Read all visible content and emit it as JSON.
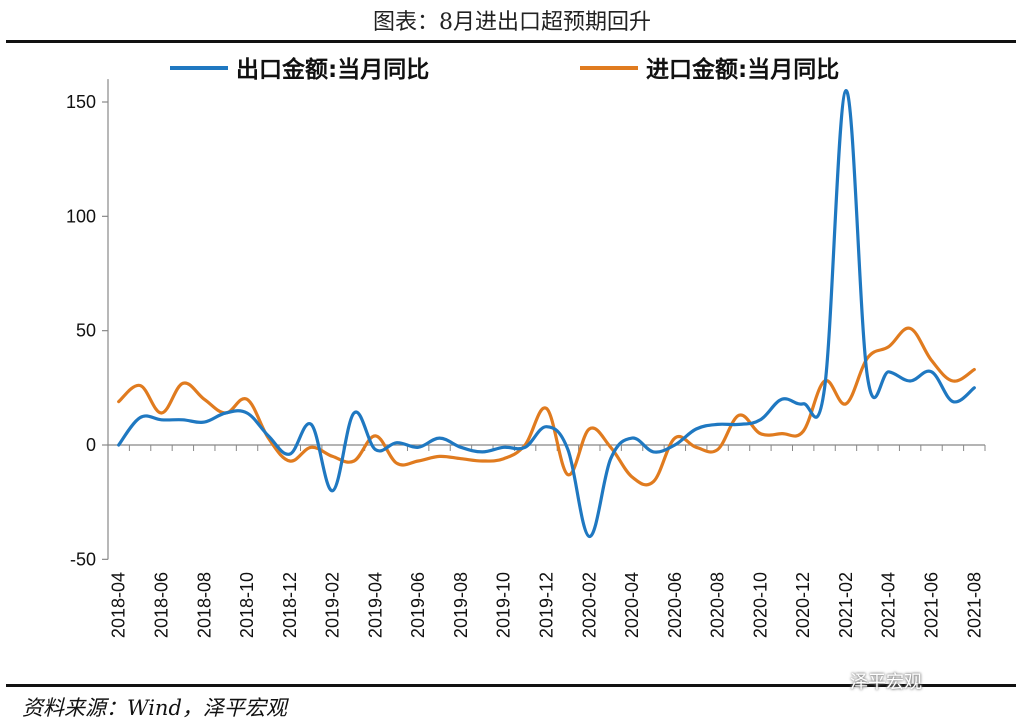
{
  "header": {
    "title": "图表：8月进出口超预期回升"
  },
  "footer": {
    "source": "资料来源：Wind，泽平宏观",
    "watermark": "泽平宏观"
  },
  "chart_data": {
    "type": "line",
    "title": "图表：8月进出口超预期回升",
    "xlabel": "",
    "ylabel": "",
    "ylim": [
      -50,
      160
    ],
    "yticks": [
      -50,
      0,
      50,
      100,
      150
    ],
    "grid": false,
    "legend_position": "top",
    "x": [
      "2018-04",
      "2018-05",
      "2018-06",
      "2018-07",
      "2018-08",
      "2018-09",
      "2018-10",
      "2018-11",
      "2018-12",
      "2019-01",
      "2019-02",
      "2019-03",
      "2019-04",
      "2019-05",
      "2019-06",
      "2019-07",
      "2019-08",
      "2019-09",
      "2019-10",
      "2019-11",
      "2019-12",
      "2020-01",
      "2020-02",
      "2020-03",
      "2020-04",
      "2020-05",
      "2020-06",
      "2020-07",
      "2020-08",
      "2020-09",
      "2020-10",
      "2020-11",
      "2020-12",
      "2021-01",
      "2021-02",
      "2021-03",
      "2021-04",
      "2021-05",
      "2021-06",
      "2021-07",
      "2021-08"
    ],
    "xtick_labels": [
      "2018-04",
      "2018-06",
      "2018-08",
      "2018-10",
      "2018-12",
      "2019-02",
      "2019-04",
      "2019-06",
      "2019-08",
      "2019-10",
      "2019-12",
      "2020-02",
      "2020-04",
      "2020-06",
      "2020-08",
      "2020-10",
      "2020-12",
      "2021-02",
      "2021-04",
      "2021-06",
      "2021-08"
    ],
    "series": [
      {
        "name": "出口金额:当月同比",
        "color": "#1f78c1",
        "values": [
          0,
          12,
          11,
          11,
          10,
          14,
          14,
          4,
          -4,
          9,
          -20,
          14,
          -2,
          1,
          -1,
          3,
          -1,
          -3,
          -1,
          -1,
          8,
          -2,
          -40,
          -6,
          3,
          -3,
          0,
          7,
          9,
          9,
          11,
          20,
          18,
          25,
          155,
          30,
          32,
          28,
          32,
          19,
          25
        ]
      },
      {
        "name": "进口金额:当月同比",
        "color": "#e07b1f",
        "values": [
          19,
          26,
          14,
          27,
          20,
          14,
          20,
          3,
          -7,
          -1,
          -5,
          -7,
          4,
          -8,
          -7,
          -5,
          -6,
          -7,
          -6,
          0,
          16,
          -13,
          7,
          -1,
          -14,
          -16,
          3,
          -1,
          -2,
          13,
          5,
          5,
          6,
          28,
          18,
          38,
          43,
          51,
          37,
          28,
          33
        ]
      }
    ]
  }
}
